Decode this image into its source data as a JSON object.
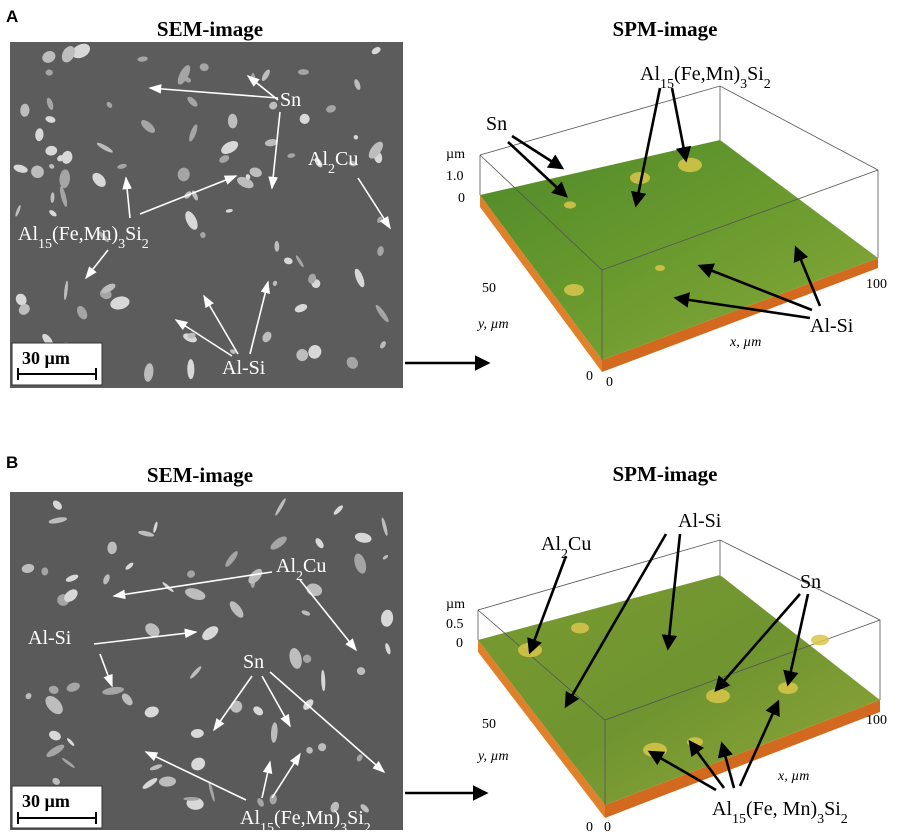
{
  "panel_a": {
    "letter": "A",
    "sem": {
      "title": "SEM-image",
      "scale_bar": "30 µm",
      "labels": [
        {
          "parts": [
            "Sn"
          ]
        },
        {
          "parts": [
            "Al",
            "2",
            "Cu"
          ]
        },
        {
          "parts": [
            "Al",
            "15",
            "(Fe,Mn)",
            "3",
            "Si",
            "2"
          ]
        },
        {
          "parts": [
            "Al-Si"
          ]
        }
      ]
    },
    "spm": {
      "title": "SPM-image",
      "labels": [
        {
          "parts": [
            "Al",
            "15",
            "(Fe,Mn)",
            "3",
            "Si",
            "2"
          ]
        },
        {
          "parts": [
            "Sn"
          ]
        },
        {
          "parts": [
            "Al-Si"
          ]
        }
      ],
      "axes": {
        "z_unit": "µm",
        "z_ticks": [
          "1.0",
          "0"
        ],
        "y_ticks": [
          "50",
          "0"
        ],
        "x_ticks": [
          "0",
          "100"
        ],
        "y_label": "y, µm",
        "x_label": "x, µm"
      }
    }
  },
  "panel_b": {
    "letter": "B",
    "sem": {
      "title": "SEM-image",
      "scale_bar": "30 µm",
      "labels": [
        {
          "parts": [
            "Al",
            "2",
            "Cu"
          ]
        },
        {
          "parts": [
            "Al-Si"
          ]
        },
        {
          "parts": [
            "Sn"
          ]
        },
        {
          "parts": [
            "Al",
            "15",
            "(Fe,Mn)",
            "3",
            "Si",
            "2"
          ]
        }
      ]
    },
    "spm": {
      "title": "SPM-image",
      "labels": [
        {
          "parts": [
            "Al",
            "2",
            "Cu"
          ]
        },
        {
          "parts": [
            "Al-Si"
          ]
        },
        {
          "parts": [
            "Sn"
          ]
        },
        {
          "parts": [
            "Al",
            "15",
            "(Fe, Mn)",
            "3",
            "Si",
            "2"
          ]
        }
      ],
      "axes": {
        "z_unit": "µm",
        "z_ticks": [
          "0.5",
          "0"
        ],
        "y_ticks": [
          "50",
          "0"
        ],
        "x_ticks": [
          "0",
          "100"
        ],
        "y_label": "y, µm",
        "x_label": "x, µm"
      }
    }
  }
}
